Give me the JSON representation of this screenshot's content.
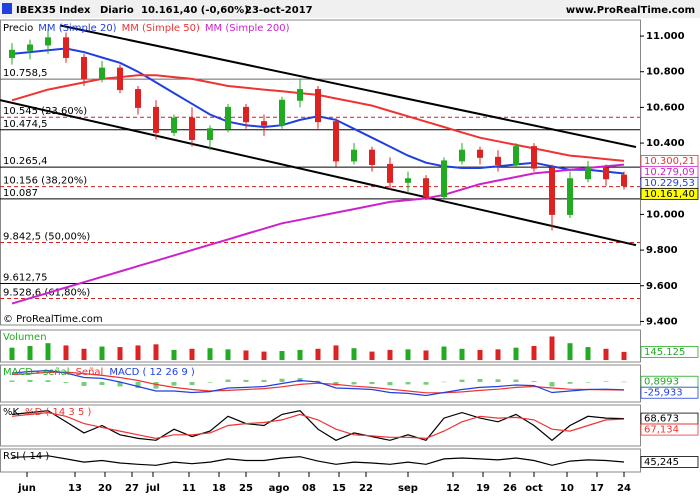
{
  "header": {
    "title": "IBEX35 Index",
    "period": "Diario",
    "last": "10.161,40 (-0,60%)",
    "date": "23-oct-2017",
    "site": "www.ProRealTime.com"
  },
  "chart_data": [
    {
      "type": "candlestick",
      "copyright": "© ProRealTime.com",
      "xlim": [
        0,
        106
      ],
      "xticks": [
        {
          "value": 4.5,
          "label": "jun"
        },
        {
          "value": 12.5,
          "label": "13"
        },
        {
          "value": 17.5,
          "label": "20"
        },
        {
          "value": 22,
          "label": "27"
        },
        {
          "value": 25.5,
          "label": "jul"
        },
        {
          "value": 31.5,
          "label": "11"
        },
        {
          "value": 36.5,
          "label": "18"
        },
        {
          "value": 41,
          "label": "25"
        },
        {
          "value": 46.5,
          "label": "ago"
        },
        {
          "value": 51.5,
          "label": "08"
        },
        {
          "value": 56.5,
          "label": "15"
        },
        {
          "value": 61,
          "label": "22"
        },
        {
          "value": 68,
          "label": "sep"
        },
        {
          "value": 75.5,
          "label": "12"
        },
        {
          "value": 80.5,
          "label": "19"
        },
        {
          "value": 85,
          "label": "26"
        },
        {
          "value": 89,
          "label": "oct"
        },
        {
          "value": 94.5,
          "label": "10"
        },
        {
          "value": 99.5,
          "label": "17"
        },
        {
          "value": 104,
          "label": "24"
        }
      ],
      "ylim": [
        9380,
        11090
      ],
      "yticks": [
        {
          "value": 11000,
          "label": "11.000"
        },
        {
          "value": 10800,
          "label": "10.800"
        },
        {
          "value": 10600,
          "label": "10.600"
        },
        {
          "value": 10400,
          "label": "10.400"
        },
        {
          "value": 10200,
          "label": "10.200"
        },
        {
          "value": 10000,
          "label": "10.000"
        },
        {
          "value": 9800,
          "label": "9.800"
        },
        {
          "value": 9600,
          "label": "9.600"
        },
        {
          "value": 9400,
          "label": "9.400"
        }
      ],
      "x": [
        2,
        5,
        8,
        11,
        14,
        17,
        20,
        23,
        26,
        29,
        32,
        35,
        38,
        41,
        44,
        47,
        50,
        53,
        56,
        59,
        62,
        65,
        68,
        71,
        74,
        77,
        80,
        83,
        86,
        89,
        92,
        95,
        98,
        101,
        104
      ],
      "candles": {
        "name": "Precio",
        "up_color": "#22aa22",
        "down_color": "#dd2222",
        "last_label": "10.161,40",
        "last_background": "#ffff00",
        "open": [
          10880,
          10920,
          10950,
          10990,
          10880,
          10760,
          10820,
          10700,
          10600,
          10460,
          10540,
          10420,
          10480,
          10600,
          10520,
          10500,
          10640,
          10700,
          10520,
          10300,
          10360,
          10280,
          10180,
          10200,
          10100,
          10300,
          10360,
          10320,
          10280,
          10380,
          10260,
          10000,
          10200,
          10260,
          10220
        ],
        "high": [
          10960,
          10980,
          11040,
          11020,
          10900,
          10860,
          10840,
          10720,
          10640,
          10560,
          10600,
          10500,
          10620,
          10620,
          10560,
          10660,
          10760,
          10720,
          10540,
          10400,
          10380,
          10320,
          10240,
          10220,
          10320,
          10400,
          10380,
          10360,
          10400,
          10400,
          10280,
          10240,
          10300,
          10280,
          10240
        ],
        "low": [
          10840,
          10870,
          10900,
          10850,
          10720,
          10740,
          10680,
          10560,
          10420,
          10440,
          10380,
          10360,
          10460,
          10480,
          10440,
          10480,
          10600,
          10480,
          10260,
          10280,
          10240,
          10140,
          10120,
          10080,
          10090,
          10280,
          10280,
          10240,
          10260,
          10240,
          9910,
          9980,
          10180,
          10160,
          10140
        ],
        "close": [
          10920,
          10950,
          10990,
          10880,
          10760,
          10820,
          10700,
          10600,
          10460,
          10540,
          10420,
          10480,
          10600,
          10520,
          10500,
          10640,
          10700,
          10520,
          10300,
          10360,
          10280,
          10180,
          10200,
          10100,
          10300,
          10360,
          10320,
          10280,
          10380,
          10260,
          10000,
          10200,
          10260,
          10200,
          10161.4
        ]
      },
      "series": [
        {
          "name": "MM (Simple 20)",
          "color": "#1f3fe0",
          "last_label": "10.229,53",
          "values": [
            10900,
            10910,
            10920,
            10930,
            10910,
            10880,
            10850,
            10800,
            10740,
            10680,
            10620,
            10560,
            10520,
            10500,
            10490,
            10500,
            10530,
            10550,
            10530,
            10480,
            10430,
            10380,
            10330,
            10290,
            10270,
            10260,
            10260,
            10270,
            10280,
            10290,
            10270,
            10250,
            10250,
            10240,
            10229.53
          ]
        },
        {
          "name": "MM (Simple 50)",
          "color": "#ee3333",
          "last_label": "10.300,21",
          "values": [
            10640,
            10670,
            10700,
            10720,
            10740,
            10760,
            10770,
            10780,
            10780,
            10770,
            10760,
            10740,
            10720,
            10710,
            10700,
            10690,
            10680,
            10670,
            10650,
            10630,
            10610,
            10580,
            10550,
            10520,
            10490,
            10460,
            10430,
            10410,
            10390,
            10370,
            10350,
            10330,
            10320,
            10310,
            10300.21
          ]
        },
        {
          "name": "MM (Simple 200)",
          "color": "#cc22cc",
          "last_label": "10.279,09",
          "values": [
            9500,
            9530,
            9560,
            9590,
            9620,
            9650,
            9680,
            9710,
            9740,
            9770,
            9800,
            9830,
            9860,
            9890,
            9920,
            9950,
            9970,
            9990,
            10010,
            10030,
            10050,
            10070,
            10080,
            10090,
            10110,
            10140,
            10170,
            10190,
            10210,
            10230,
            10240,
            10250,
            10260,
            10270,
            10279.09
          ]
        }
      ],
      "trendlines": [
        {
          "color": "#000000",
          "x": [
            10,
            106
          ],
          "values": [
            11060,
            10378
          ]
        },
        {
          "color": "#000000",
          "x": [
            0,
            106
          ],
          "values": [
            10641,
            9828
          ]
        }
      ],
      "levels": [
        {
          "value": 10758.5,
          "label": "10.758,5",
          "style": "solid",
          "color": "#666666"
        },
        {
          "value": 10545,
          "label": "10.545 (23,60%)",
          "style": "dashed",
          "color": "#cc2222"
        },
        {
          "value": 10474.5,
          "label": "10.474,5",
          "style": "solid",
          "color": "#000000"
        },
        {
          "value": 10265.4,
          "label": "10.265,4",
          "style": "solid",
          "color": "#000000"
        },
        {
          "value": 10156,
          "label": "10.156 (38,20%)",
          "style": "dashed",
          "color": "#cc2222"
        },
        {
          "value": 10087,
          "label": "10.087",
          "style": "solid",
          "color": "#000000"
        },
        {
          "value": 9842.5,
          "label": "9.842,5 (50,00%)",
          "style": "dashed",
          "color": "#cc2222"
        },
        {
          "value": 9612.75,
          "label": "9.612,75",
          "style": "solid",
          "color": "#000000"
        },
        {
          "value": 9528.6,
          "label": "9.528,6 (61,80%)",
          "style": "dashed",
          "color": "#cc2222"
        }
      ]
    },
    {
      "type": "volume",
      "ylim": [
        0,
        500000
      ],
      "series": [
        {
          "name": "Volumen",
          "style": "bar",
          "color": "#22aa22",
          "last_label": "145.125",
          "values": [
            220000,
            250000,
            300000,
            260000,
            200000,
            240000,
            230000,
            260000,
            280000,
            180000,
            200000,
            210000,
            190000,
            170000,
            150000,
            160000,
            180000,
            200000,
            260000,
            210000,
            150000,
            180000,
            190000,
            170000,
            240000,
            200000,
            180000,
            190000,
            220000,
            250000,
            420000,
            300000,
            230000,
            200000,
            145125
          ]
        }
      ]
    },
    {
      "type": "indicator",
      "ylim": [
        -60,
        50
      ],
      "series": [
        {
          "name": "MACD - señal",
          "style": "histogram",
          "color": "#22aa22",
          "last_label": "0,8993",
          "values": [
            5,
            7,
            6,
            -3,
            -13,
            -10,
            -15,
            -20,
            -22,
            -12,
            -10,
            -2,
            8,
            7,
            7,
            11,
            13,
            4,
            -12,
            -8,
            -7,
            -11,
            -8,
            -9,
            1,
            8,
            10,
            9,
            8,
            3,
            -15,
            -6,
            0,
            2,
            0.8993
          ]
        },
        {
          "name": "Señal",
          "style": "line",
          "color": "#ee3333",
          "values": [
            25,
            28,
            32,
            33,
            28,
            22,
            15,
            5,
            -8,
            -18,
            -25,
            -30,
            -28,
            -25,
            -22,
            -16,
            -8,
            -4,
            -8,
            -14,
            -18,
            -24,
            -30,
            -36,
            -36,
            -33,
            -28,
            -24,
            -18,
            -15,
            -20,
            -24,
            -25,
            -26,
            -26.8
          ]
        },
        {
          "name": "MACD ( 12 26 9 )",
          "style": "line",
          "color": "#1f3fe0",
          "last_label": "-25,933",
          "values": [
            30,
            35,
            38,
            30,
            15,
            12,
            0,
            -15,
            -30,
            -30,
            -35,
            -32,
            -20,
            -18,
            -15,
            -5,
            5,
            0,
            -20,
            -22,
            -25,
            -35,
            -38,
            -45,
            -35,
            -25,
            -18,
            -15,
            -10,
            -12,
            -35,
            -30,
            -25,
            -24,
            -25.933
          ]
        }
      ]
    },
    {
      "type": "indicator",
      "ylim": [
        0,
        100
      ],
      "series": [
        {
          "name": "%K",
          "style": "line",
          "color": "#000000",
          "last_label": "68,673",
          "values": [
            80,
            85,
            90,
            60,
            30,
            50,
            25,
            15,
            10,
            40,
            20,
            35,
            75,
            55,
            50,
            80,
            90,
            40,
            10,
            30,
            20,
            10,
            25,
            10,
            70,
            85,
            70,
            60,
            80,
            50,
            10,
            50,
            75,
            70,
            68.673
          ]
        },
        {
          "name": "%D ( 14 3 5 )",
          "style": "line",
          "color": "#ee3333",
          "last_label": "67,134",
          "values": [
            75,
            80,
            85,
            75,
            55,
            45,
            35,
            25,
            15,
            25,
            25,
            30,
            50,
            55,
            58,
            65,
            80,
            65,
            40,
            25,
            22,
            18,
            18,
            15,
            35,
            60,
            75,
            70,
            72,
            65,
            40,
            35,
            50,
            65,
            67.134
          ]
        }
      ]
    },
    {
      "type": "indicator",
      "ylim": [
        20,
        80
      ],
      "series": [
        {
          "name": "RSI ( 14 )",
          "style": "line",
          "color": "#000000",
          "last_label": "45,245",
          "values": [
            60,
            62,
            65,
            55,
            45,
            50,
            42,
            38,
            35,
            45,
            40,
            45,
            55,
            50,
            50,
            58,
            62,
            48,
            38,
            45,
            42,
            38,
            45,
            38,
            55,
            58,
            55,
            52,
            58,
            50,
            35,
            48,
            52,
            50,
            45.245
          ]
        }
      ]
    }
  ]
}
